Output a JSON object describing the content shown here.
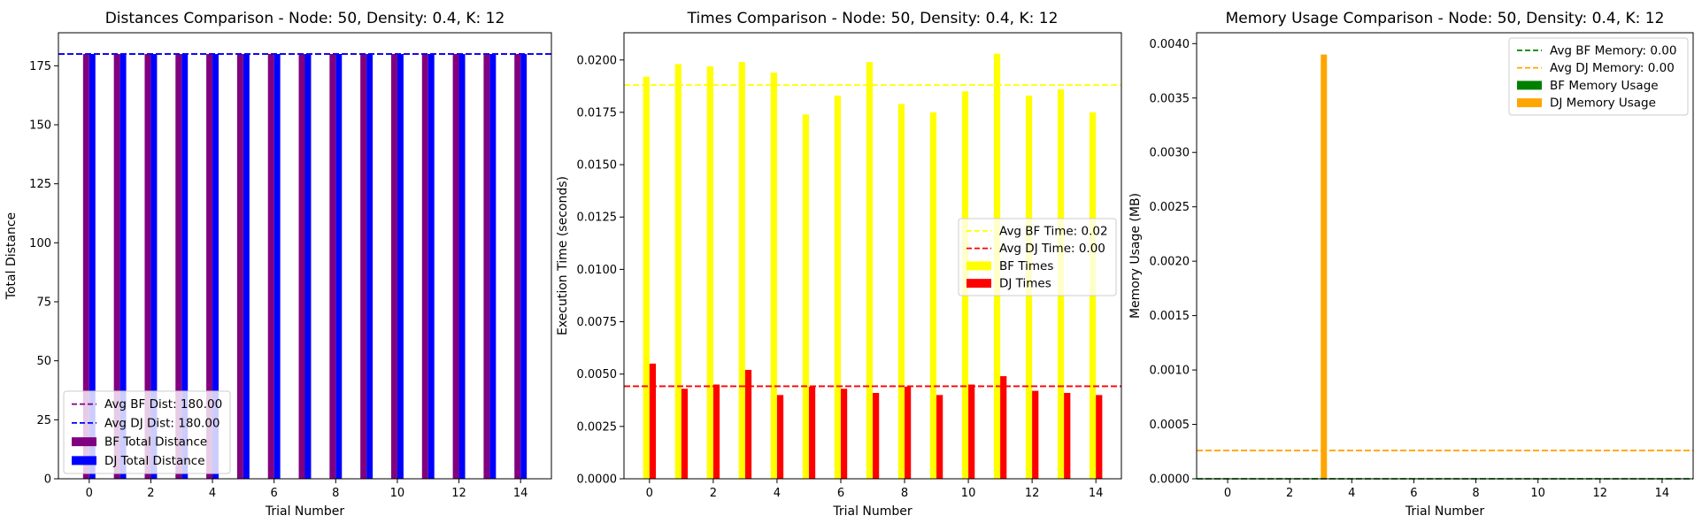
{
  "chart_data": [
    {
      "type": "bar",
      "title": "Distances Comparison - Node: 50, Density: 0.4, K: 12",
      "xlabel": "Trial Number",
      "ylabel": "Total Distance",
      "x": [
        0,
        1,
        2,
        3,
        4,
        5,
        6,
        7,
        8,
        9,
        10,
        11,
        12,
        13,
        14
      ],
      "xlim": [
        -1.0,
        15.0
      ],
      "ylim": [
        0,
        189
      ],
      "xticks": [
        0,
        2,
        4,
        6,
        8,
        10,
        12,
        14
      ],
      "xtick_labels": [
        "0",
        "2",
        "4",
        "6",
        "8",
        "10",
        "12",
        "14"
      ],
      "yticks": [
        0,
        25,
        50,
        75,
        100,
        125,
        150,
        175
      ],
      "ytick_labels": [
        "0",
        "25",
        "50",
        "75",
        "100",
        "125",
        "150",
        "175"
      ],
      "legend_position": "lower-left",
      "series": [
        {
          "name": "BF Total Distance",
          "color": "#800080",
          "values": [
            180,
            180,
            180,
            180,
            180,
            180,
            180,
            180,
            180,
            180,
            180,
            180,
            180,
            180,
            180
          ]
        },
        {
          "name": "DJ Total Distance",
          "color": "#0000ff",
          "values": [
            180,
            180,
            180,
            180,
            180,
            180,
            180,
            180,
            180,
            180,
            180,
            180,
            180,
            180,
            180
          ]
        }
      ],
      "hlines": [
        {
          "name": "Avg BF Dist: 180.00",
          "value": 180,
          "color": "#800080"
        },
        {
          "name": "Avg DJ Dist: 180.00",
          "value": 180,
          "color": "#0000ff"
        }
      ]
    },
    {
      "type": "bar",
      "title": "Times Comparison - Node: 50, Density: 0.4, K: 12",
      "xlabel": "Trial Number",
      "ylabel": "Execution Time (seconds)",
      "x": [
        0,
        1,
        2,
        3,
        4,
        5,
        6,
        7,
        8,
        9,
        10,
        11,
        12,
        13,
        14
      ],
      "xlim": [
        -0.8,
        14.8
      ],
      "ylim": [
        0,
        0.0213
      ],
      "xticks": [
        0,
        2,
        4,
        6,
        8,
        10,
        12,
        14
      ],
      "xtick_labels": [
        "0",
        "2",
        "4",
        "6",
        "8",
        "10",
        "12",
        "14"
      ],
      "yticks": [
        0,
        0.0025,
        0.005,
        0.0075,
        0.01,
        0.0125,
        0.015,
        0.0175,
        0.02
      ],
      "ytick_labels": [
        "0.0000",
        "0.0025",
        "0.0050",
        "0.0075",
        "0.0100",
        "0.0125",
        "0.0150",
        "0.0175",
        "0.0200"
      ],
      "legend_position": "center-right",
      "series": [
        {
          "name": "BF Times",
          "color": "#ffff00",
          "values": [
            0.0192,
            0.0198,
            0.0197,
            0.0199,
            0.0194,
            0.0174,
            0.0183,
            0.0199,
            0.0179,
            0.0175,
            0.0185,
            0.0203,
            0.0183,
            0.0186,
            0.0175
          ]
        },
        {
          "name": "DJ Times",
          "color": "#ff0000",
          "values": [
            0.0055,
            0.0043,
            0.0045,
            0.0052,
            0.004,
            0.0044,
            0.0043,
            0.0041,
            0.0044,
            0.004,
            0.0045,
            0.0049,
            0.0042,
            0.0041,
            0.004
          ]
        }
      ],
      "hlines": [
        {
          "name": "Avg BF Time: 0.02",
          "value": 0.0188,
          "color": "#ffff00"
        },
        {
          "name": "Avg DJ Time: 0.00",
          "value": 0.00442,
          "color": "#ff0000"
        }
      ]
    },
    {
      "type": "bar",
      "title": "Memory Usage Comparison - Node: 50, Density: 0.4, K: 12",
      "xlabel": "Trial Number",
      "ylabel": "Memory Usage (MB)",
      "x": [
        0,
        1,
        2,
        3,
        4,
        5,
        6,
        7,
        8,
        9,
        10,
        11,
        12,
        13,
        14
      ],
      "xlim": [
        -1.0,
        15.0
      ],
      "ylim": [
        0,
        0.0041
      ],
      "xticks": [
        0,
        2,
        4,
        6,
        8,
        10,
        12,
        14
      ],
      "xtick_labels": [
        "0",
        "2",
        "4",
        "6",
        "8",
        "10",
        "12",
        "14"
      ],
      "yticks": [
        0,
        0.0005,
        0.001,
        0.0015,
        0.002,
        0.0025,
        0.003,
        0.0035,
        0.004
      ],
      "ytick_labels": [
        "0.0000",
        "0.0005",
        "0.0010",
        "0.0015",
        "0.0020",
        "0.0025",
        "0.0030",
        "0.0035",
        "0.0040"
      ],
      "legend_position": "upper-right",
      "series": [
        {
          "name": "BF Memory Usage",
          "color": "#008000",
          "values": [
            0,
            0,
            0,
            0,
            0,
            0,
            0,
            0,
            0,
            0,
            0,
            0,
            0,
            0,
            0
          ]
        },
        {
          "name": "DJ Memory Usage",
          "color": "#ffa500",
          "values": [
            0,
            0,
            0,
            0.0039,
            0,
            0,
            0,
            0,
            0,
            0,
            0,
            0,
            0,
            0,
            0
          ]
        }
      ],
      "hlines": [
        {
          "name": "Avg BF Memory: 0.00",
          "value": 0,
          "color": "#008000"
        },
        {
          "name": "Avg DJ Memory: 0.00",
          "value": 0.00026,
          "color": "#ffa500"
        }
      ]
    }
  ]
}
